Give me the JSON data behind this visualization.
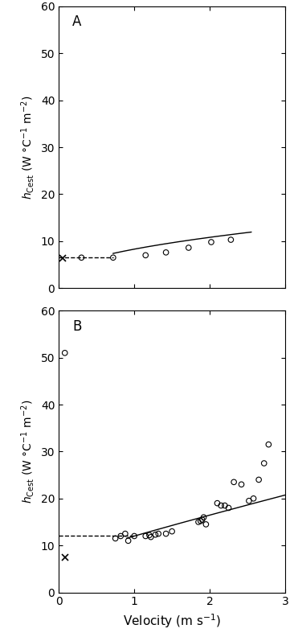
{
  "panel_A": {
    "label": "A",
    "scatter_x": [
      0.3,
      0.72,
      1.15,
      1.42,
      1.72,
      2.02,
      2.28
    ],
    "scatter_y": [
      6.5,
      6.5,
      7.0,
      7.6,
      8.6,
      9.8,
      10.3
    ],
    "star_x": [
      0.05
    ],
    "star_y": [
      6.3
    ],
    "dashed_x0": 0.0,
    "dashed_x1": 0.72,
    "dashed_y": 6.5,
    "curve_x_start": 0.72,
    "curve_x_end": 2.55,
    "curve_a": 5.8,
    "curve_b": 0.52,
    "curve_c": 2.5,
    "xlim": [
      0,
      3
    ],
    "ylim": [
      0,
      60
    ],
    "yticks": [
      0,
      10,
      20,
      30,
      40,
      50,
      60
    ],
    "xticks": [
      0,
      1,
      2,
      3
    ]
  },
  "panel_B": {
    "label": "B",
    "scatter_x": [
      0.08,
      0.75,
      0.82,
      0.88,
      0.92,
      1.0,
      1.15,
      1.2,
      1.22,
      1.28,
      1.32,
      1.42,
      1.5,
      1.85,
      1.88,
      1.9,
      1.92,
      1.95,
      2.1,
      2.15,
      2.2,
      2.25,
      2.32,
      2.42,
      2.52,
      2.58,
      2.65,
      2.72,
      2.78
    ],
    "scatter_y": [
      51,
      11.5,
      12.0,
      12.5,
      11.0,
      12.0,
      12.0,
      12.2,
      11.8,
      12.3,
      12.5,
      12.5,
      13.0,
      15.0,
      15.2,
      15.5,
      16.0,
      14.5,
      19.0,
      18.5,
      18.5,
      18.0,
      23.5,
      23.0,
      19.5,
      20.0,
      24.0,
      27.5,
      31.5
    ],
    "star_x": [
      0.08
    ],
    "star_y": [
      7.5
    ],
    "dashed_x0": 0.0,
    "dashed_x1": 1.02,
    "dashed_y": 12.0,
    "curve_x_start": 0.9,
    "curve_x_end": 3.0,
    "curve_a": 5.0,
    "curve_b": 0.92,
    "curve_c": 7.0,
    "xlim": [
      0,
      3
    ],
    "ylim": [
      0,
      60
    ],
    "yticks": [
      0,
      10,
      20,
      30,
      40,
      50,
      60
    ],
    "xticks": [
      0,
      1,
      2,
      3
    ]
  },
  "ylabel": "$h_{\\mathrm{Cest}}$ (W °C$^{-1}$ m$^{-2}$)",
  "xlabel": "Velocity (m s$^{-1}$)",
  "bg_color": "#ffffff",
  "line_color": "#000000"
}
